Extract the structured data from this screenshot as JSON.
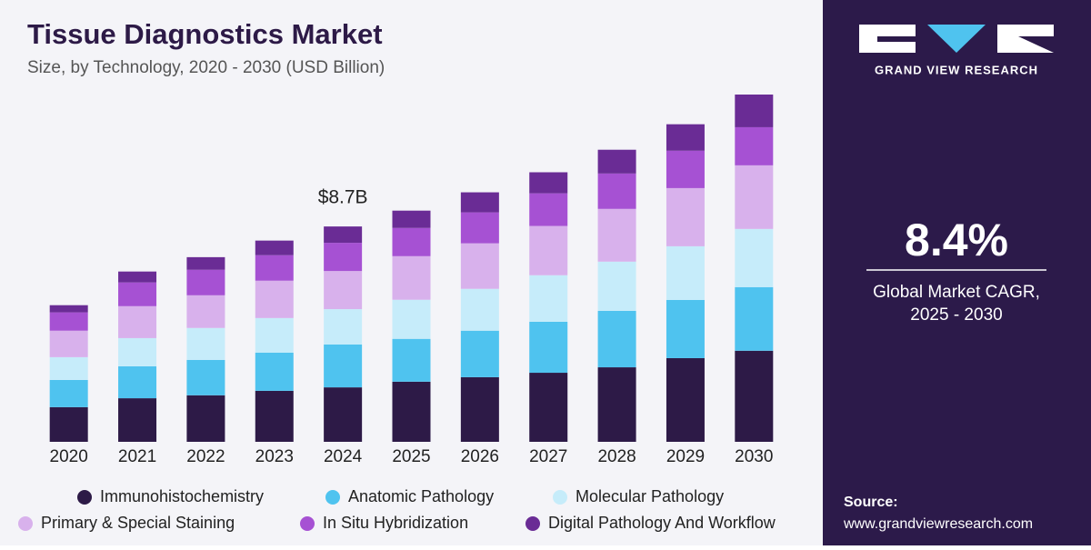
{
  "chart_data": {
    "type": "stacked_bar",
    "title": "Tissue Diagnostics Market",
    "subtitle": "Size, by Technology, 2020 - 2030 (USD Billion)",
    "categories": [
      "2020",
      "2021",
      "2022",
      "2023",
      "2024",
      "2025",
      "2026",
      "2027",
      "2028",
      "2029",
      "2030"
    ],
    "series": [
      {
        "name": "Immunohistochemistry",
        "color": "#2d1a47",
        "values": [
          1.4,
          1.76,
          1.88,
          2.06,
          2.2,
          2.43,
          2.61,
          2.79,
          3.01,
          3.38,
          3.68
        ]
      },
      {
        "name": "Anatomic Pathology",
        "color": "#4fc3ef",
        "values": [
          1.1,
          1.29,
          1.43,
          1.54,
          1.73,
          1.73,
          1.88,
          2.06,
          2.28,
          2.35,
          2.57
        ]
      },
      {
        "name": "Molecular Pathology",
        "color": "#c6ecfa",
        "values": [
          0.92,
          1.14,
          1.29,
          1.4,
          1.43,
          1.58,
          1.69,
          1.88,
          1.99,
          2.17,
          2.35
        ]
      },
      {
        "name": "Primary & Special Staining",
        "color": "#d8b1ec",
        "values": [
          1.07,
          1.29,
          1.32,
          1.51,
          1.54,
          1.76,
          1.84,
          1.99,
          2.13,
          2.35,
          2.57
        ]
      },
      {
        "name": "In Situ Hybridization",
        "color": "#a651d3",
        "values": [
          0.74,
          0.96,
          1.03,
          1.03,
          1.14,
          1.14,
          1.25,
          1.32,
          1.43,
          1.51,
          1.54
        ]
      },
      {
        "name": "Digital Pathology And Workflow",
        "color": "#6a2c95",
        "values": [
          0.29,
          0.44,
          0.51,
          0.59,
          0.66,
          0.7,
          0.81,
          0.85,
          0.96,
          1.07,
          1.32
        ]
      }
    ],
    "total_label": {
      "category": "2024",
      "value": 8.7,
      "label": "$8.7B"
    },
    "brand": "GRAND VIEW RESEARCH",
    "cagr": "8.4%",
    "cagr_caption": [
      "Global Market CAGR,",
      "2025 - 2030"
    ],
    "source_title": "Source:",
    "source_url": "www.grandviewresearch.com"
  }
}
